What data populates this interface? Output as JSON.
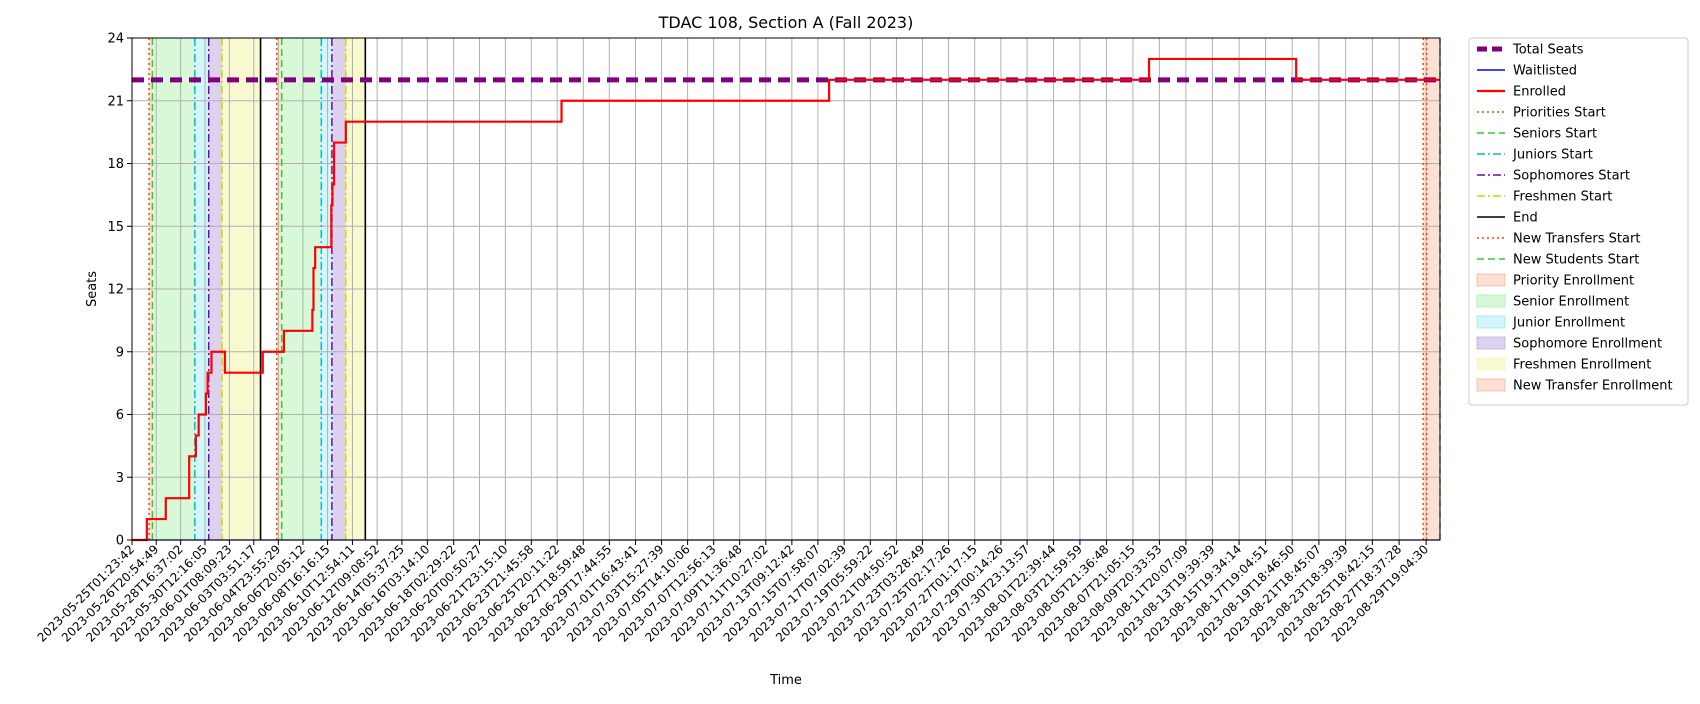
{
  "chart_data": {
    "type": "line",
    "title": "TDAC 108, Section A (Fall 2023)",
    "xlabel": "Time",
    "ylabel": "Seats",
    "ylim": [
      0,
      24
    ],
    "yticks": [
      0,
      3,
      6,
      9,
      12,
      15,
      18,
      21,
      24
    ],
    "grid": true,
    "legend_position": "outside-right",
    "xlim": [
      "2023-05-25T01:23:42",
      "2023-08-30T20:00:00"
    ],
    "xticks": [
      "2023-05-25T01:23:42",
      "2023-05-26T20:54:49",
      "2023-05-28T16:37:02",
      "2023-05-30T12:16:05",
      "2023-06-01T08:09:23",
      "2023-06-03T03:51:17",
      "2023-06-04T23:55:29",
      "2023-06-06T20:05:12",
      "2023-06-08T16:16:15",
      "2023-06-10T12:54:11",
      "2023-06-12T09:08:52",
      "2023-06-14T05:37:25",
      "2023-06-16T03:14:10",
      "2023-06-18T02:29:22",
      "2023-06-20T00:50:27",
      "2023-06-21T23:15:10",
      "2023-06-23T21:45:58",
      "2023-06-25T20:11:22",
      "2023-06-27T18:59:48",
      "2023-06-29T17:44:55",
      "2023-07-01T16:43:41",
      "2023-07-03T15:27:39",
      "2023-07-05T14:10:06",
      "2023-07-07T12:56:13",
      "2023-07-09T11:36:48",
      "2023-07-11T10:27:02",
      "2023-07-13T09:12:42",
      "2023-07-15T07:58:07",
      "2023-07-17T07:02:39",
      "2023-07-19T05:59:22",
      "2023-07-21T04:50:52",
      "2023-07-23T03:28:49",
      "2023-07-25T02:17:26",
      "2023-07-27T01:17:15",
      "2023-07-29T00:14:26",
      "2023-07-30T23:13:57",
      "2023-08-01T22:39:44",
      "2023-08-03T21:59:59",
      "2023-08-05T21:36:48",
      "2023-08-07T21:05:15",
      "2023-08-09T20:33:53",
      "2023-08-11T20:07:09",
      "2023-08-13T19:39:39",
      "2023-08-15T19:34:14",
      "2023-08-17T19:04:51",
      "2023-08-19T18:46:50",
      "2023-08-21T18:45:07",
      "2023-08-23T18:39:39",
      "2023-08-25T18:42:15",
      "2023-08-27T18:37:28",
      "2023-08-29T19:04:30"
    ],
    "series": [
      {
        "name": "Total Seats",
        "color": "#800080",
        "style": "dashed-thick",
        "x": [
          "2023-05-25T01:23:42",
          "2023-08-30T20:00:00"
        ],
        "y": [
          22,
          22
        ]
      },
      {
        "name": "Waitlisted",
        "color": "#0000ff",
        "style": "solid",
        "x": [
          "2023-05-25T01:23:42",
          "2023-08-30T20:00:00"
        ],
        "y": [
          0,
          0
        ]
      },
      {
        "name": "Enrolled",
        "color": "#ff0000",
        "style": "step",
        "x": [
          "2023-05-25T01:23:42",
          "2023-05-26T04:00:00",
          "2023-05-27T14:00:00",
          "2023-05-29T08:00:00",
          "2023-05-29T12:00:00",
          "2023-05-29T20:00:00",
          "2023-05-30T01:00:00",
          "2023-05-30T04:00:00",
          "2023-05-30T14:00:00",
          "2023-05-30T17:00:00",
          "2023-05-30T20:00:00",
          "2023-05-31T00:00:00",
          "2023-05-31T03:00:00",
          "2023-06-01T00:00:00",
          "2023-06-03T20:00:00",
          "2023-06-05T10:00:00",
          "2023-06-06T20:00:00",
          "2023-06-07T13:00:00",
          "2023-06-07T15:00:00",
          "2023-06-07T18:00:00",
          "2023-06-08T20:00:00",
          "2023-06-08T23:00:00",
          "2023-06-09T01:00:00",
          "2023-06-09T04:00:00",
          "2023-06-10T01:00:00",
          "2023-06-26T04:00:00",
          "2023-07-16T04:00:00",
          "2023-08-09T02:00:00",
          "2023-08-20T02:00:00",
          "2023-08-30T20:00:00"
        ],
        "y": [
          0,
          1,
          2,
          4,
          4,
          5,
          6,
          6,
          7,
          8,
          8,
          9,
          9,
          8,
          9,
          10,
          10,
          11,
          13,
          14,
          14,
          16,
          17,
          19,
          20,
          21,
          22,
          23,
          22,
          22
        ]
      }
    ],
    "vlines": [
      {
        "name": "Priorities Start",
        "color": "#ff4500",
        "style": "dotted",
        "x": [
          "2023-05-26T08:00:00",
          "2023-06-04T21:00:00",
          "2023-08-29T20:00:00"
        ]
      },
      {
        "name": "Seniors Start",
        "color": "#32cd32",
        "style": "dashed",
        "x": [
          "2023-05-26T14:00:00",
          "2023-06-05T06:00:00"
        ]
      },
      {
        "name": "Juniors Start",
        "color": "#00bcd4",
        "style": "dashdot",
        "x": [
          "2023-05-29T18:00:00",
          "2023-06-08T05:00:00"
        ]
      },
      {
        "name": "Sophomores Start",
        "color": "#6a0dad",
        "style": "dashdot",
        "x": [
          "2023-05-30T19:00:00",
          "2023-06-09T00:00:00"
        ]
      },
      {
        "name": "Freshmen Start",
        "color": "#d4d400",
        "style": "dashdot",
        "x": [
          "2023-05-31T19:00:00",
          "2023-06-10T01:00:00"
        ]
      },
      {
        "name": "End",
        "color": "#000000",
        "style": "solid",
        "x": [
          "2023-06-03T16:00:00",
          "2023-06-11T12:00:00"
        ]
      },
      {
        "name": "New Transfers Start",
        "color": "#ff4500",
        "style": "dotted",
        "x": [
          "2023-08-29T14:00:00"
        ]
      },
      {
        "name": "New Students Start",
        "color": "#32cd32",
        "style": "dashed",
        "x": [
          "2023-08-30T20:00:00"
        ]
      }
    ],
    "spans": [
      {
        "name": "Priority Enrollment",
        "color": "#f4a582",
        "alpha": 0.35,
        "ranges": [
          [
            "2023-05-26T08:00:00",
            "2023-05-26T14:00:00"
          ],
          [
            "2023-06-04T21:00:00",
            "2023-06-05T06:00:00"
          ]
        ]
      },
      {
        "name": "Senior Enrollment",
        "color": "#90ee90",
        "alpha": 0.35,
        "ranges": [
          [
            "2023-05-26T14:00:00",
            "2023-05-29T18:00:00"
          ],
          [
            "2023-06-05T06:00:00",
            "2023-06-08T05:00:00"
          ]
        ]
      },
      {
        "name": "Junior Enrollment",
        "color": "#7fe5f0",
        "alpha": 0.35,
        "ranges": [
          [
            "2023-05-29T18:00:00",
            "2023-05-30T19:00:00"
          ],
          [
            "2023-06-08T05:00:00",
            "2023-06-09T00:00:00"
          ]
        ]
      },
      {
        "name": "Sophomore Enrollment",
        "color": "#b19cd9",
        "alpha": 0.45,
        "ranges": [
          [
            "2023-05-30T19:00:00",
            "2023-05-31T19:00:00"
          ],
          [
            "2023-06-09T00:00:00",
            "2023-06-10T01:00:00"
          ]
        ]
      },
      {
        "name": "Freshmen Enrollment",
        "color": "#f5f5b0",
        "alpha": 0.6,
        "ranges": [
          [
            "2023-05-31T19:00:00",
            "2023-06-03T16:00:00"
          ],
          [
            "2023-06-10T01:00:00",
            "2023-06-11T12:00:00"
          ]
        ]
      },
      {
        "name": "New Transfer Enrollment",
        "color": "#f4a582",
        "alpha": 0.35,
        "ranges": [
          [
            "2023-08-29T14:00:00",
            "2023-08-30T20:00:00"
          ]
        ]
      }
    ],
    "legend": [
      {
        "label": "Total Seats",
        "kind": "line",
        "color": "#800080",
        "style": "dashed-thick"
      },
      {
        "label": "Waitlisted",
        "kind": "line",
        "color": "#0000ff",
        "style": "solid"
      },
      {
        "label": "Enrolled",
        "kind": "line",
        "color": "#ff0000",
        "style": "solid-thick"
      },
      {
        "label": "Priorities Start",
        "kind": "line",
        "color": "#ff4500",
        "style": "dotted"
      },
      {
        "label": "Seniors Start",
        "kind": "line",
        "color": "#32cd32",
        "style": "dashed"
      },
      {
        "label": "Juniors Start",
        "kind": "line",
        "color": "#00bcd4",
        "style": "dashdot"
      },
      {
        "label": "Sophomores Start",
        "kind": "line",
        "color": "#6a0dad",
        "style": "dashdot"
      },
      {
        "label": "Freshmen Start",
        "kind": "line",
        "color": "#d4d400",
        "style": "dashdot"
      },
      {
        "label": "End",
        "kind": "line",
        "color": "#000000",
        "style": "solid"
      },
      {
        "label": "New Transfers Start",
        "kind": "line",
        "color": "#ff4500",
        "style": "dotted"
      },
      {
        "label": "New Students Start",
        "kind": "line",
        "color": "#32cd32",
        "style": "dashed"
      },
      {
        "label": "Priority Enrollment",
        "kind": "patch",
        "color": "#f4a582",
        "alpha": 0.35
      },
      {
        "label": "Senior Enrollment",
        "kind": "patch",
        "color": "#90ee90",
        "alpha": 0.35
      },
      {
        "label": "Junior Enrollment",
        "kind": "patch",
        "color": "#7fe5f0",
        "alpha": 0.35
      },
      {
        "label": "Sophomore Enrollment",
        "kind": "patch",
        "color": "#b19cd9",
        "alpha": 0.45
      },
      {
        "label": "Freshmen Enrollment",
        "kind": "patch",
        "color": "#f5f5b0",
        "alpha": 0.6
      },
      {
        "label": "New Transfer Enrollment",
        "kind": "patch",
        "color": "#f4a582",
        "alpha": 0.35
      }
    ]
  }
}
